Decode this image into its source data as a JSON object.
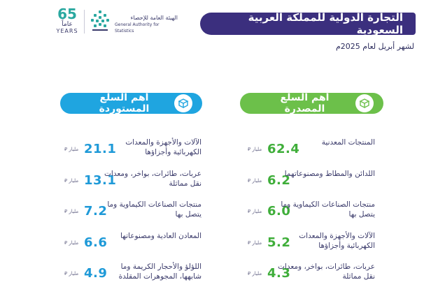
{
  "header": {
    "title": "التجارة الدولية للمملكة العربية السعودية",
    "subtitle": "لشهر أبريل لعام 2025م"
  },
  "logo": {
    "anniversary_number": "65",
    "anniversary_arabic": "عاماً",
    "anniversary_years": "YEARS",
    "org_name_ar": "الهيئة العامة للإحصاء",
    "org_name_en": "General Authority for Statistics"
  },
  "colors": {
    "title_banner": "#3b2f7e",
    "export_accent": "#6cc04a",
    "import_accent": "#1fa5e0"
  },
  "chart_data": [
    {
      "type": "table",
      "title": "أهم السلع المصدرة",
      "unit": "مليار",
      "currency_icon": "riyal-icon",
      "categories": [
        "المنتجات المعدنية",
        "اللدائن والمطاط ومصنوعاتهما",
        "منتجات الصناعات الكيماوية وما يتصل بها",
        "الآلات والأجهزة والمعدات الكهربائية وأجزاؤها",
        "عربات، طائرات، بواخر، ومعدات نقل مماثلة"
      ],
      "values": [
        62.4,
        6.2,
        6.0,
        5.2,
        4.3
      ],
      "value_labels": [
        "62.4",
        "6.2",
        "6.0",
        "5.2",
        "4.3"
      ]
    },
    {
      "type": "table",
      "title": "أهم السلع المستوردة",
      "unit": "مليار",
      "currency_icon": "riyal-icon",
      "categories": [
        "الآلات والأجهزة والمعدات الكهربائية وأجزاؤها",
        "عربات، طائرات، بواخر، ومعدات نقل مماثلة",
        "منتجات الصناعات الكيماوية وما يتصل بها",
        "المعادن العادية ومصنوعاتها",
        "اللؤلؤ والأحجار الكريمة وما شابهها، المجوهرات المقلدة"
      ],
      "values": [
        21.1,
        13.1,
        7.2,
        6.6,
        4.9
      ],
      "value_labels": [
        "21.1",
        "13.1",
        "7.2",
        "6.6",
        "4.9"
      ]
    }
  ]
}
